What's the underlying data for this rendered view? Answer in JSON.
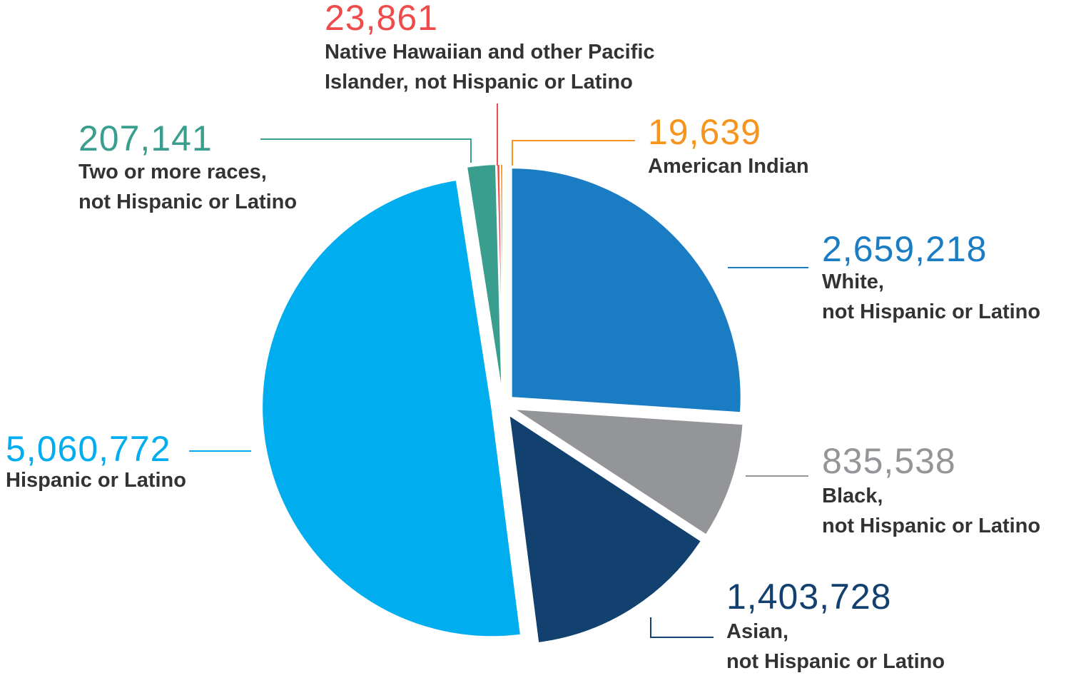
{
  "chart_data": {
    "type": "pie",
    "categories": [
      "White,\nnot Hispanic or Latino",
      "Black,\nnot Hispanic or Latino",
      "Asian,\nnot Hispanic or Latino",
      "Hispanic or Latino",
      "Two or more races,\nnot Hispanic or Latino",
      "Native Hawaiian and other Pacific\nIslander, not Hispanic or Latino",
      "American Indian"
    ],
    "values": [
      2659218,
      835538,
      1403728,
      5060772,
      207141,
      23861,
      19639
    ],
    "value_labels": [
      "2,659,218",
      "835,538",
      "1,403,728",
      "5,060,772",
      "207,141",
      "23,861",
      "19,639"
    ],
    "colors": [
      "#1a7dc4",
      "#939598",
      "#12406f",
      "#00adee",
      "#3a9e8e",
      "#ef4b4b",
      "#f7941d"
    ]
  }
}
